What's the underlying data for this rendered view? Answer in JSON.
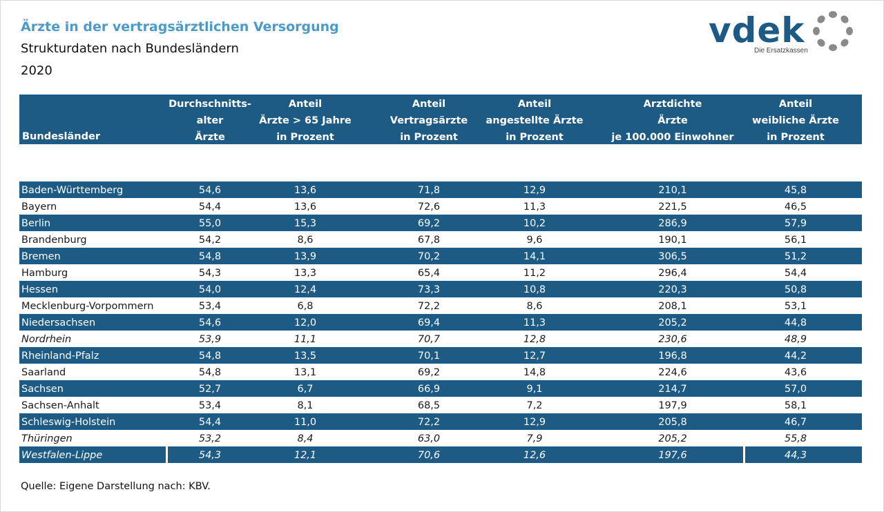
{
  "header": {
    "title": "Ärzte in der vertragsärztlichen Versorgung",
    "subtitle": "Strukturdaten nach Bundesländern",
    "year": "2020"
  },
  "logo": {
    "text": "vdek",
    "tagline": "Die Ersatzkassen",
    "color": "#1d5b86"
  },
  "table": {
    "first_header": "Bundesländer",
    "columns": [
      [
        "Durchschnitts-",
        "alter",
        "Ärzte"
      ],
      [
        "Anteil",
        "Ärzte > 65 Jahre",
        "in Prozent"
      ],
      [
        "Anteil",
        "Vertragsärzte",
        "in Prozent"
      ],
      [
        "Anteil",
        "angestellte Ärzte",
        "in Prozent"
      ],
      [
        "Arztdichte",
        "Ärzte",
        "je 100.000 Einwohner"
      ],
      [
        "Anteil",
        "weibliche Ärzte",
        "in Prozent"
      ]
    ],
    "rows": [
      {
        "name": "Baden-Württemberg",
        "values": [
          "54,6",
          "13,6",
          "71,8",
          "12,9",
          "210,1",
          "45,8"
        ],
        "italic": false
      },
      {
        "name": "Bayern",
        "values": [
          "54,4",
          "13,6",
          "72,6",
          "11,3",
          "221,5",
          "46,5"
        ],
        "italic": false
      },
      {
        "name": "Berlin",
        "values": [
          "55,0",
          "15,3",
          "69,2",
          "10,2",
          "286,9",
          "57,9"
        ],
        "italic": false
      },
      {
        "name": "Brandenburg",
        "values": [
          "54,2",
          "8,6",
          "67,8",
          "9,6",
          "190,1",
          "56,1"
        ],
        "italic": false
      },
      {
        "name": "Bremen",
        "values": [
          "54,8",
          "13,9",
          "70,2",
          "14,1",
          "306,5",
          "51,2"
        ],
        "italic": false
      },
      {
        "name": "Hamburg",
        "values": [
          "54,3",
          "13,3",
          "65,4",
          "11,2",
          "296,4",
          "54,4"
        ],
        "italic": false
      },
      {
        "name": "Hessen",
        "values": [
          "54,0",
          "12,4",
          "73,3",
          "10,8",
          "220,3",
          "50,8"
        ],
        "italic": false
      },
      {
        "name": "Mecklenburg-Vorpommern",
        "values": [
          "53,4",
          "6,8",
          "72,2",
          "8,6",
          "208,1",
          "53,1"
        ],
        "italic": false
      },
      {
        "name": "Niedersachsen",
        "values": [
          "54,6",
          "12,0",
          "69,4",
          "11,3",
          "205,2",
          "44,8"
        ],
        "italic": false
      },
      {
        "name": "Nordrhein",
        "values": [
          "53,9",
          "11,1",
          "70,7",
          "12,8",
          "230,6",
          "48,9"
        ],
        "italic": true
      },
      {
        "name": "Rheinland-Pfalz",
        "values": [
          "54,8",
          "13,5",
          "70,1",
          "12,7",
          "196,8",
          "44,2"
        ],
        "italic": false
      },
      {
        "name": "Saarland",
        "values": [
          "54,8",
          "13,1",
          "69,2",
          "14,8",
          "224,6",
          "43,6"
        ],
        "italic": false
      },
      {
        "name": "Sachsen",
        "values": [
          "52,7",
          "6,7",
          "66,9",
          "9,1",
          "214,7",
          "57,0"
        ],
        "italic": false
      },
      {
        "name": "Sachsen-Anhalt",
        "values": [
          "53,4",
          "8,1",
          "68,5",
          "7,2",
          "197,9",
          "58,1"
        ],
        "italic": false
      },
      {
        "name": "Schleswig-Holstein",
        "values": [
          "54,4",
          "11,0",
          "72,2",
          "12,9",
          "205,8",
          "46,7"
        ],
        "italic": false
      },
      {
        "name": "Thüringen",
        "values": [
          "53,2",
          "8,4",
          "63,0",
          "7,9",
          "205,2",
          "55,8"
        ],
        "italic": true
      },
      {
        "name": "Westfalen-Lippe",
        "values": [
          "54,3",
          "12,1",
          "70,6",
          "12,6",
          "197,6",
          "44,3"
        ],
        "italic": true
      }
    ]
  },
  "footer": {
    "source": "Quelle: Eigene Darstellung nach: KBV."
  },
  "colors": {
    "title": "#4a9bc7",
    "band": "#1e5b84",
    "logo_ring": "#8a8a8a"
  }
}
